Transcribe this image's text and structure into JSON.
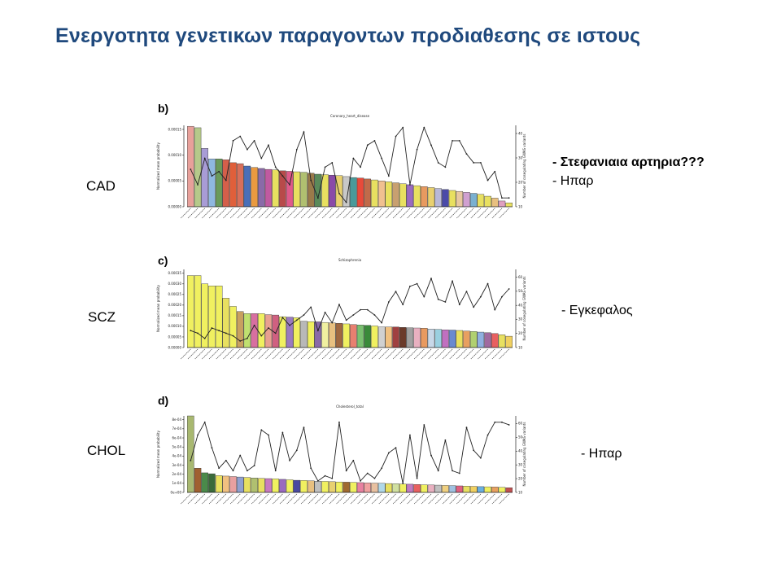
{
  "title": "Ενεργοτητα γενετικων παραγοντων προδιαθεσης σε ιστους",
  "rows": [
    {
      "label": "CAD",
      "notes": [
        "- Στεφανιαια αρτηρια???",
        "- Ηπαρ"
      ]
    },
    {
      "label": "SCZ",
      "notes": [
        "- Εγκεφαλος"
      ]
    },
    {
      "label": "CHOL",
      "notes": [
        "- Ηπαρ"
      ]
    }
  ],
  "chart_data": [
    {
      "panel": "b)",
      "type": "bar",
      "title": "Coronary_heart_disease",
      "ylabel": "Normalized mean probability",
      "y2label": "Number of cosegulating GWAS variants",
      "yticks": [
        "0.00000",
        "0.00005",
        "0.00010",
        "0.00015"
      ],
      "y2ticks": [
        "10",
        "20",
        "30",
        "40"
      ],
      "ylim": [
        0,
        0.00017
      ],
      "y2lim": [
        8,
        45
      ],
      "values": [
        0.000168,
        0.000165,
        0.000122,
        0.0001,
        0.0001,
        9.8e-05,
        9.2e-05,
        9e-05,
        8.5e-05,
        8.2e-05,
        8e-05,
        7.8e-05,
        7.7e-05,
        7.5e-05,
        7.4e-05,
        7.3e-05,
        7.2e-05,
        7e-05,
        6.8e-05,
        6.7e-05,
        6.6e-05,
        6.5e-05,
        6.3e-05,
        6.1e-05,
        6e-05,
        5.8e-05,
        5.6e-05,
        5.4e-05,
        5.2e-05,
        5e-05,
        4.8e-05,
        4.6e-05,
        4.4e-05,
        4.2e-05,
        4e-05,
        3.8e-05,
        3.6e-05,
        3.4e-05,
        3.2e-05,
        3e-05,
        2.8e-05,
        2.6e-05,
        2.2e-05,
        1.8e-05,
        1.2e-05,
        8e-06
      ],
      "colors": [
        "#e8a09a",
        "#b5c98a",
        "#a89cd6",
        "#8fb8e0",
        "#6a9a5a",
        "#d45f4a",
        "#e05f3a",
        "#d86f5a",
        "#4a6fb8",
        "#ea9a40",
        "#8a6aa8",
        "#c05aa0",
        "#e8e060",
        "#b84a4a",
        "#e05a8a",
        "#e8e060",
        "#b0c070",
        "#9a7a4a",
        "#5a8a5a",
        "#e8e060",
        "#8a4aa8",
        "#e8d070",
        "#c8c8c8",
        "#4a9a9a",
        "#e84a3a",
        "#c06a4a",
        "#e8e060",
        "#f0c090",
        "#e8e060",
        "#c8a070",
        "#e8e060",
        "#9a6ac0",
        "#e8e060",
        "#e89a60",
        "#e8d070",
        "#b8b8d8",
        "#4a4aa8",
        "#e8e060",
        "#e8c8a0",
        "#d0a0d0",
        "#7ab0d0",
        "#e8e060",
        "#e8e060",
        "#e8c080",
        "#e0a0c0",
        "#e8e060"
      ],
      "line": [
        25,
        18,
        30,
        22,
        24,
        20,
        38,
        40,
        34,
        38,
        30,
        36,
        26,
        22,
        18,
        34,
        42,
        20,
        12,
        26,
        28,
        14,
        10,
        30,
        26,
        36,
        38,
        30,
        22,
        40,
        44,
        18,
        34,
        44,
        36,
        28,
        26,
        38,
        38,
        32,
        28,
        28,
        20,
        24,
        12,
        12
      ]
    },
    {
      "panel": "c)",
      "type": "bar",
      "title": "Schizophrenia",
      "ylabel": "Normalized mean probability",
      "y2label": "Number of cosegulating GWAS variants",
      "yticks": [
        "0.00000",
        "0.00005",
        "0.00010",
        "0.00015",
        "0.00020",
        "0.00025",
        "0.00030",
        "0.00035"
      ],
      "y2ticks": [
        "10",
        "20",
        "30",
        "40",
        "50",
        "60"
      ],
      "ylim": [
        0,
        0.00038
      ],
      "y2lim": [
        5,
        65
      ],
      "values": [
        0.00035,
        0.00035,
        0.00031,
        0.0003,
        0.0003,
        0.00024,
        0.0002,
        0.000175,
        0.000165,
        0.000165,
        0.000165,
        0.00016,
        0.000158,
        0.00015,
        0.000148,
        0.000145,
        0.000128,
        0.000126,
        0.000125,
        0.000122,
        0.00012,
        0.000118,
        0.000115,
        0.000112,
        0.00011,
        0.000108,
        0.000105,
        0.0001,
        0.0001,
        0.0001,
        9.8e-05,
        9.6e-05,
        9.5e-05,
        9.4e-05,
        9e-05,
        8.8e-05,
        8.6e-05,
        8.5e-05,
        8.3e-05,
        8e-05,
        7.8e-05,
        7.5e-05,
        7.2e-05,
        6.8e-05,
        6.2e-05,
        5.5e-05
      ],
      "colors": [
        "#f0f060",
        "#f0f060",
        "#f0f060",
        "#f0f060",
        "#f0f060",
        "#e8e060",
        "#f0f060",
        "#c8a060",
        "#c0e070",
        "#d86fa0",
        "#f0f060",
        "#e8a090",
        "#d06080",
        "#f0f060",
        "#9a7ac0",
        "#f0f060",
        "#b8b8b8",
        "#f0f060",
        "#8a6aa8",
        "#f0f0a0",
        "#e8c080",
        "#a06840",
        "#f0f060",
        "#e88070",
        "#7ac070",
        "#3a8a3a",
        "#f0f060",
        "#d0d0d0",
        "#f0c080",
        "#a04040",
        "#6a3a2a",
        "#a0a0a0",
        "#e8b0c0",
        "#e89a60",
        "#c8d8e8",
        "#9ad0e0",
        "#c070c0",
        "#6a8ad0",
        "#e8e060",
        "#e8a060",
        "#b0d070",
        "#90b0e0",
        "#a06aa0",
        "#e86060",
        "#e8e060",
        "#f0d060"
      ],
      "line": [
        18,
        16,
        12,
        20,
        18,
        16,
        14,
        10,
        12,
        22,
        14,
        20,
        16,
        28,
        22,
        26,
        30,
        36,
        18,
        32,
        24,
        38,
        26,
        30,
        34,
        34,
        30,
        24,
        40,
        48,
        38,
        52,
        54,
        44,
        58,
        42,
        40,
        56,
        38,
        48,
        36,
        44,
        54,
        34,
        44,
        50
      ]
    },
    {
      "panel": "d)",
      "type": "bar",
      "title": "Cholesterol_total",
      "ylabel": "Normalized mean probability",
      "y2label": "Number of cosegulating GWAS variants",
      "yticks": [
        "0e+00",
        "1e-04",
        "2e-04",
        "3e-04",
        "4e-04",
        "5e-04",
        "6e-04",
        "7e-04",
        "8e-04"
      ],
      "y2ticks": [
        "10",
        "20",
        "30",
        "40",
        "50",
        "60"
      ],
      "ylim": [
        0,
        0.00082
      ],
      "y2lim": [
        5,
        65
      ],
      "values": [
        0.00082,
        0.00026,
        0.00021,
        0.0002,
        0.00018,
        0.000175,
        0.00017,
        0.000165,
        0.00016,
        0.000155,
        0.00015,
        0.000148,
        0.000145,
        0.00014,
        0.000135,
        0.00013,
        0.000128,
        0.000125,
        0.00012,
        0.000118,
        0.000115,
        0.000112,
        0.00011,
        0.000108,
        0.000105,
        0.000102,
        0.0001,
        9.8e-05,
        9.5e-05,
        9.3e-05,
        9e-05,
        8.8e-05,
        8.5e-05,
        8.2e-05,
        8e-05,
        7.8e-05,
        7.5e-05,
        7.3e-05,
        7e-05,
        6.8e-05,
        6.5e-05,
        6.2e-05,
        6e-05,
        5.8e-05,
        5.5e-05,
        5e-05
      ],
      "colors": [
        "#a8b870",
        "#a06030",
        "#4a8a4a",
        "#3a6a3a",
        "#e8e060",
        "#f0c080",
        "#e8a0a0",
        "#90a0d0",
        "#e8e060",
        "#b0c070",
        "#e8e060",
        "#c87ac0",
        "#f0f060",
        "#9a6ac0",
        "#f0f060",
        "#4a4aa0",
        "#f0f060",
        "#e8c080",
        "#c0c0c0",
        "#f0f060",
        "#e8d070",
        "#f0f060",
        "#a06a30",
        "#f0f060",
        "#e880a0",
        "#f0a0a0",
        "#e8c0a0",
        "#b0d8e8",
        "#e8e060",
        "#d0e0a0",
        "#f0f060",
        "#c07ac0",
        "#e86060",
        "#f0f060",
        "#e8b0c0",
        "#c0c0c0",
        "#f0d080",
        "#a0c0e0",
        "#e06080",
        "#e8e060",
        "#f0d060",
        "#6ab0e0",
        "#f0f060",
        "#e8a060",
        "#f0f060",
        "#c05050"
      ],
      "line": [
        30,
        50,
        60,
        40,
        24,
        30,
        22,
        34,
        22,
        26,
        54,
        50,
        22,
        52,
        30,
        38,
        56,
        24,
        14,
        18,
        16,
        60,
        22,
        30,
        14,
        20,
        16,
        24,
        36,
        40,
        12,
        50,
        16,
        58,
        34,
        22,
        46,
        22,
        20,
        56,
        38,
        32,
        50,
        60,
        60,
        58
      ]
    }
  ],
  "colors": {
    "title": "#1f497d"
  }
}
